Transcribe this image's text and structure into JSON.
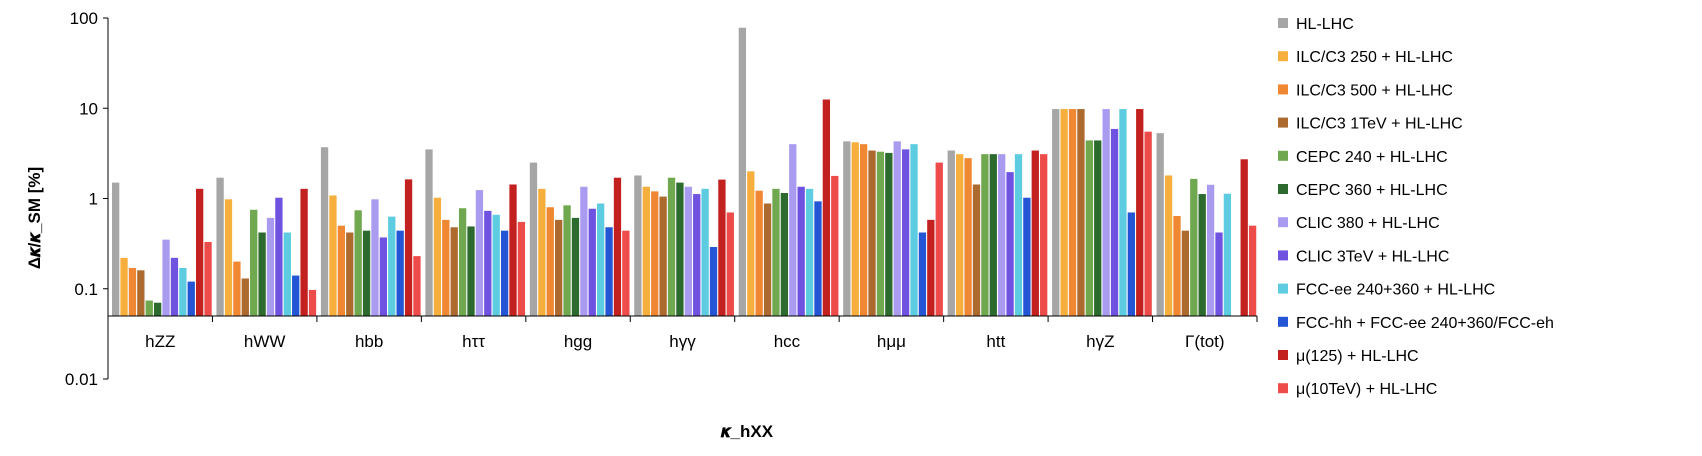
{
  "chart_data": {
    "type": "bar",
    "log_scale": true,
    "ylim": [
      0.01,
      100
    ],
    "y_ticks": [
      "100",
      "10",
      "1",
      "0.1",
      "0.01"
    ],
    "xlabel": "𝜿_hXX",
    "ylabel": "Δ𝜿/𝜿_SM [%]",
    "grid": false,
    "legend_position": "right",
    "categories": [
      "hZZ",
      "hWW",
      "hbb",
      "hττ",
      "hgg",
      "hγγ",
      "hcc",
      "hμμ",
      "htt",
      "hγZ",
      "Γ(tot)"
    ],
    "series": [
      {
        "name": "HL-LHC",
        "color": "#a6a6a6",
        "values": [
          1.5,
          1.7,
          3.7,
          3.5,
          2.5,
          1.8,
          78,
          4.3,
          3.4,
          9.8,
          5.3
        ]
      },
      {
        "name": "ILC/C3 250 + HL-LHC",
        "color": "#f6ae3d",
        "values": [
          0.22,
          0.98,
          1.08,
          1.02,
          1.28,
          1.35,
          2.0,
          4.2,
          3.1,
          9.8,
          1.8
        ]
      },
      {
        "name": "ILC/C3 500 + HL-LHC",
        "color": "#ef8733",
        "values": [
          0.17,
          0.2,
          0.5,
          0.58,
          0.8,
          1.2,
          1.22,
          4.0,
          2.8,
          9.8,
          0.64
        ]
      },
      {
        "name": "ILC/C3 1TeV + HL-LHC",
        "color": "#ad6a2f",
        "values": [
          0.16,
          0.13,
          0.42,
          0.48,
          0.58,
          1.05,
          0.88,
          3.4,
          1.43,
          9.8,
          0.44
        ]
      },
      {
        "name": "CEPC 240 + HL-LHC",
        "color": "#6fa84f",
        "values": [
          0.074,
          0.75,
          0.74,
          0.78,
          0.84,
          1.7,
          1.28,
          3.3,
          3.1,
          4.4,
          1.65
        ]
      },
      {
        "name": "CEPC 360 + HL-LHC",
        "color": "#2d6a2e",
        "values": [
          0.07,
          0.42,
          0.44,
          0.49,
          0.61,
          1.5,
          1.15,
          3.2,
          3.1,
          4.4,
          1.12
        ]
      },
      {
        "name": "CLIC 380 + HL-LHC",
        "color": "#a99cf0",
        "values": [
          0.35,
          0.61,
          0.98,
          1.24,
          1.35,
          1.35,
          4.0,
          4.3,
          3.1,
          9.8,
          1.42
        ]
      },
      {
        "name": "CLIC 3TeV + HL-LHC",
        "color": "#7052e0",
        "values": [
          0.22,
          1.02,
          0.37,
          0.73,
          0.77,
          1.12,
          1.35,
          3.5,
          1.96,
          5.9,
          0.42
        ]
      },
      {
        "name": "FCC-ee 240+360 + HL-LHC",
        "color": "#5ecce0",
        "values": [
          0.17,
          0.42,
          0.63,
          0.66,
          0.88,
          1.28,
          1.28,
          4.0,
          3.1,
          9.8,
          1.13
        ]
      },
      {
        "name": "FCC-hh + FCC-ee 240+360/FCC-eh",
        "color": "#2355d4",
        "values": [
          0.12,
          0.14,
          0.44,
          0.44,
          0.48,
          0.29,
          0.93,
          0.42,
          1.02,
          0.7,
          0.0
        ]
      },
      {
        "name": "μ(125) + HL-LHC",
        "color": "#c2211f",
        "values": [
          1.28,
          1.28,
          1.63,
          1.43,
          1.7,
          1.62,
          12.5,
          0.58,
          3.4,
          9.8,
          2.72
        ]
      },
      {
        "name": "μ(10TeV) + HL-LHC",
        "color": "#ee4c4a",
        "values": [
          0.33,
          0.097,
          0.23,
          0.55,
          0.44,
          0.7,
          1.78,
          2.5,
          3.1,
          5.5,
          0.5
        ]
      }
    ]
  }
}
